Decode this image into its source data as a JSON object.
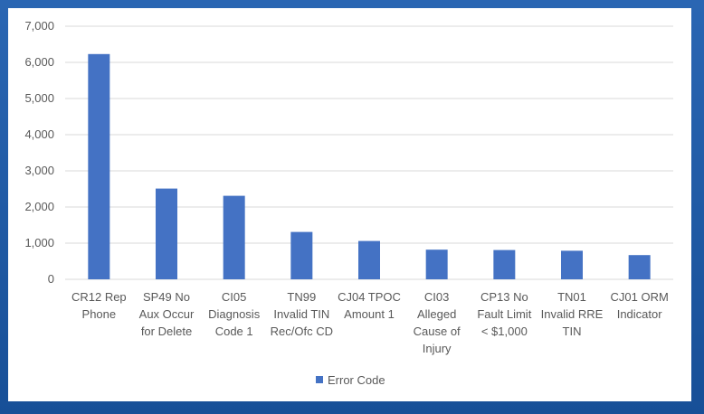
{
  "chart_data": {
    "type": "bar",
    "categories": [
      [
        "CR12 Rep",
        "Phone"
      ],
      [
        "SP49 No",
        "Aux Occur",
        "for Delete"
      ],
      [
        "CI05",
        "Diagnosis",
        "Code 1"
      ],
      [
        "TN99",
        "Invalid TIN",
        "Rec/Ofc CD"
      ],
      [
        "CJ04 TPOC",
        "Amount 1"
      ],
      [
        "CI03",
        "Alleged",
        "Cause of",
        "Injury"
      ],
      [
        "CP13 No",
        "Fault Limit",
        "< $1,000"
      ],
      [
        "TN01",
        "Invalid RRE",
        "TIN"
      ],
      [
        "CJ01 ORM",
        "Indicator"
      ]
    ],
    "series": [
      {
        "name": "Error Code",
        "values": [
          6230,
          2510,
          2310,
          1310,
          1060,
          820,
          810,
          790,
          670
        ]
      }
    ],
    "ylim": [
      0,
      7000
    ],
    "yticks": [
      "0",
      "1,000",
      "2,000",
      "3,000",
      "4,000",
      "5,000",
      "6,000",
      "7,000"
    ],
    "grid": true,
    "legend": "bottom",
    "colors": {
      "bar": "#4472c4",
      "grid": "#d9d9d9",
      "text": "#595959",
      "border": "#1f5aa6"
    }
  }
}
